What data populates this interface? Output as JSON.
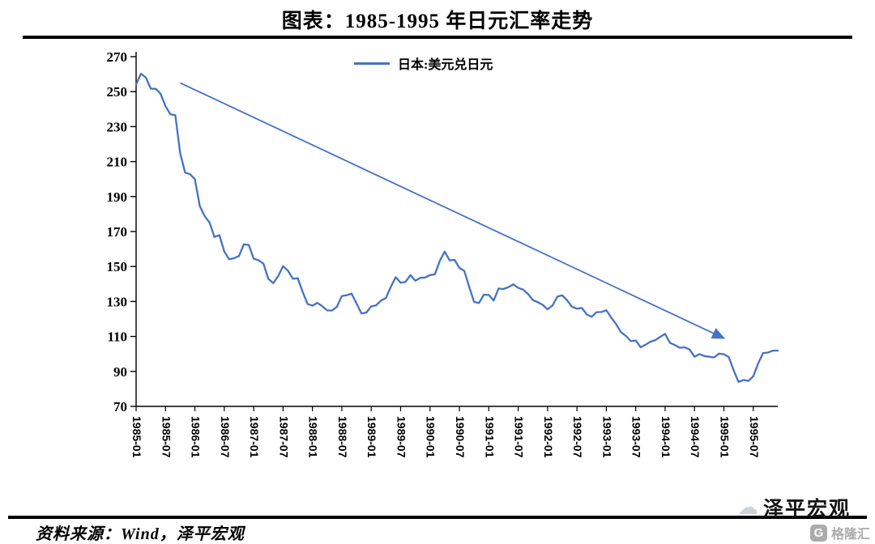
{
  "header": {
    "title": "图表：1985-1995 年日元汇率走势"
  },
  "legend": {
    "label": "日本:美元兑日元",
    "color": "#4472C4"
  },
  "footer": {
    "source": "资料来源：Wind，泽平宏观",
    "watermark": "泽平宏观",
    "logo_letter": "G",
    "logo_text": "格隆汇"
  },
  "chart_data": {
    "type": "line",
    "title": "图表：1985-1995 年日元汇率走势",
    "ylabel": "",
    "ylim": [
      70,
      270
    ],
    "y_ticks": [
      70,
      90,
      110,
      130,
      150,
      170,
      190,
      210,
      230,
      250,
      270
    ],
    "x_tick_labels": [
      "1985-01",
      "1985-07",
      "1986-01",
      "1986-07",
      "1987-01",
      "1987-07",
      "1988-01",
      "1988-07",
      "1989-01",
      "1989-07",
      "1990-01",
      "1990-07",
      "1991-01",
      "1991-07",
      "1992-01",
      "1992-07",
      "1993-01",
      "1993-07",
      "1994-01",
      "1994-07",
      "1995-01",
      "1995-07"
    ],
    "x_tick_step_months": 6,
    "grid": false,
    "legend_position": "top-center",
    "series": [
      {
        "name": "日本:美元兑日元",
        "color": "#4472C4",
        "x_start": "1985-01",
        "frequency": "monthly",
        "values": [
          254.1,
          260.3,
          258.0,
          251.7,
          251.6,
          248.8,
          241.6,
          237.1,
          236.5,
          214.7,
          203.7,
          202.8,
          200.0,
          184.6,
          178.8,
          175.1,
          166.9,
          167.9,
          158.6,
          154.1,
          154.7,
          156.0,
          162.7,
          162.3,
          154.5,
          153.5,
          151.6,
          142.9,
          140.5,
          144.5,
          150.2,
          147.6,
          143.0,
          143.3,
          135.4,
          128.6,
          127.6,
          129.2,
          127.3,
          124.9,
          124.8,
          127.0,
          133.1,
          133.6,
          134.5,
          128.8,
          123.2,
          123.6,
          127.2,
          127.8,
          130.5,
          132.0,
          138.4,
          143.9,
          140.7,
          141.2,
          145.1,
          141.9,
          143.5,
          143.7,
          145.1,
          145.5,
          153.2,
          158.5,
          153.5,
          153.8,
          149.2,
          147.5,
          138.4,
          129.7,
          129.1,
          133.9,
          133.7,
          130.5,
          137.4,
          137.1,
          138.2,
          139.8,
          137.8,
          136.8,
          134.3,
          130.8,
          129.6,
          128.1,
          125.5,
          127.7,
          132.8,
          133.5,
          130.6,
          126.9,
          125.9,
          126.3,
          122.6,
          121.2,
          123.9,
          124.0,
          125.0,
          120.8,
          117.0,
          112.4,
          110.3,
          107.3,
          107.7,
          103.8,
          105.3,
          107.0,
          107.9,
          109.7,
          111.5,
          106.3,
          105.1,
          103.5,
          103.8,
          102.5,
          98.4,
          99.9,
          98.8,
          98.4,
          98.0,
          100.2,
          99.8,
          98.2,
          90.5,
          84.0,
          85.1,
          84.6,
          87.2,
          94.6,
          100.5,
          100.8,
          101.9,
          101.9
        ]
      }
    ],
    "annotation_arrow": {
      "from_month_index": 9,
      "from_value": 255,
      "to_month_index": 120,
      "to_value": 109,
      "color": "#4472C4"
    }
  }
}
